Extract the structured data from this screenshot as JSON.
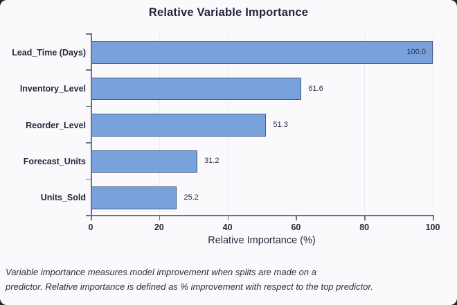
{
  "chart_data": {
    "type": "bar",
    "orientation": "horizontal",
    "title": "Relative Variable Importance",
    "categories": [
      "Lead_Time (Days)",
      "Inventory_Level",
      "Reorder_Level",
      "Forecast_Units",
      "Units_Sold"
    ],
    "values": [
      100.0,
      61.6,
      51.3,
      31.2,
      25.2
    ],
    "value_labels": [
      "100.0",
      "61.6",
      "51.3",
      "31.2",
      "25.2"
    ],
    "xlabel": "Relative Importance (%)",
    "xlim": [
      0,
      100
    ],
    "xticks": [
      0,
      20,
      40,
      60,
      80,
      100
    ],
    "grid": true,
    "legend": "none",
    "bar_fill": "#79a1db",
    "bar_border": "#3a5b88",
    "text_color": "#27273d",
    "background": "#fafafc"
  },
  "footnote_lines": [
    "Variable importance measures model improvement when splits are made on a",
    "predictor. Relative importance is defined as % improvement with respect to the top predictor."
  ]
}
